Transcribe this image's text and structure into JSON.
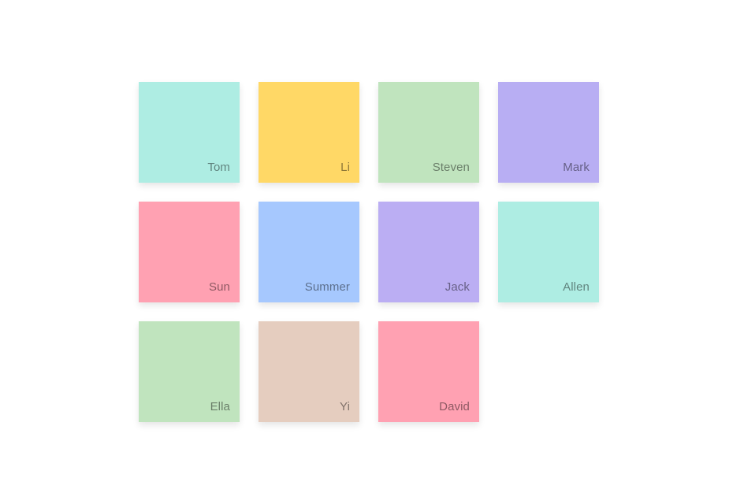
{
  "tiles": [
    {
      "name": "Tom",
      "color": "#AEEDE3"
    },
    {
      "name": "Li",
      "color": "#FFD866"
    },
    {
      "name": "Steven",
      "color": "#C0E4BE"
    },
    {
      "name": "Mark",
      "color": "#B8AEF3"
    },
    {
      "name": "Sun",
      "color": "#FFA1B2"
    },
    {
      "name": "Summer",
      "color": "#A6C8FE"
    },
    {
      "name": "Jack",
      "color": "#BBAEF3"
    },
    {
      "name": "Allen",
      "color": "#AEEDE3"
    },
    {
      "name": "Ella",
      "color": "#C0E4BE"
    },
    {
      "name": "Yi",
      "color": "#E5CDBF"
    },
    {
      "name": "David",
      "color": "#FFA1B2"
    }
  ]
}
